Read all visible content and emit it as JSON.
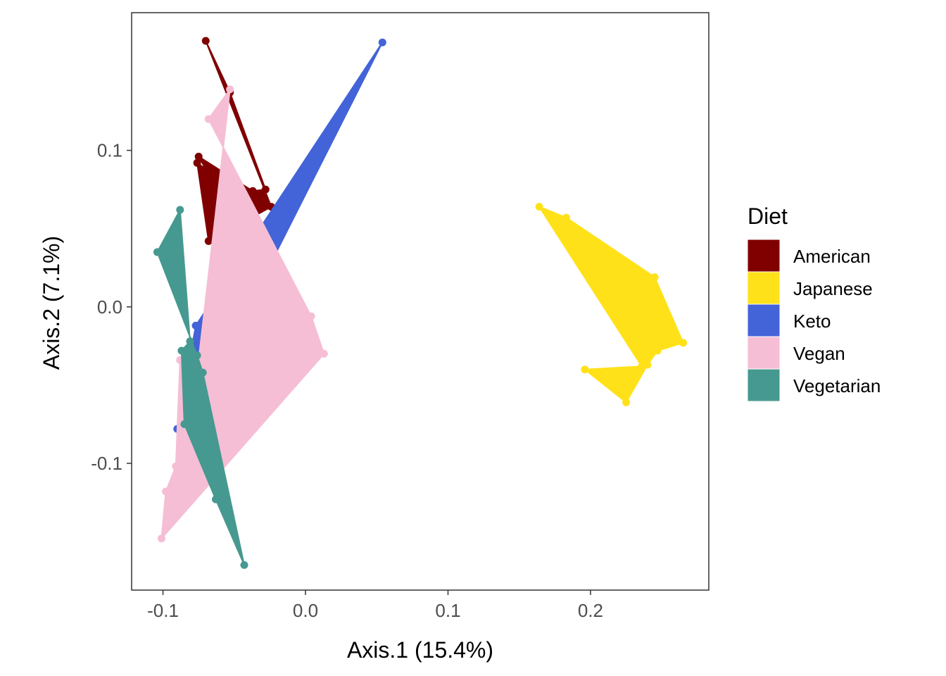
{
  "chart_data": {
    "type": "scatter",
    "xlabel": "Axis.1 (15.4%)",
    "ylabel": "Axis.2 (7.1%)",
    "xlim": [
      -0.122,
      0.283
    ],
    "ylim": [
      -0.181,
      0.188
    ],
    "x_ticks": [
      -0.1,
      0.0,
      0.1,
      0.2
    ],
    "x_tick_labels": [
      "-0.1",
      "0.0",
      "0.1",
      "0.2"
    ],
    "y_ticks": [
      -0.1,
      0.0,
      0.1
    ],
    "y_tick_labels": [
      "-0.1",
      "0.0",
      "0.1"
    ],
    "grid": false,
    "legend": {
      "title": "Diet",
      "position": "right"
    },
    "series": [
      {
        "name": "American",
        "color": "#800000",
        "points": [
          [
            -0.07,
            0.17
          ],
          [
            -0.053,
            0.137
          ],
          [
            -0.028,
            0.075
          ],
          [
            -0.037,
            0.074
          ],
          [
            -0.075,
            0.096
          ],
          [
            -0.063,
            0.077
          ],
          [
            -0.04,
            0.069
          ],
          [
            -0.076,
            0.092
          ],
          [
            -0.068,
            0.042
          ],
          [
            -0.024,
            0.064
          ]
        ]
      },
      {
        "name": "Japanese",
        "color": "#FFE119",
        "points": [
          [
            0.164,
            0.064
          ],
          [
            0.183,
            0.057
          ],
          [
            0.245,
            0.019
          ],
          [
            0.265,
            -0.023
          ],
          [
            0.247,
            -0.028
          ],
          [
            0.24,
            -0.037
          ],
          [
            0.225,
            -0.061
          ],
          [
            0.196,
            -0.04
          ],
          [
            0.236,
            -0.038
          ]
        ]
      },
      {
        "name": "Keto",
        "color": "#4363D8",
        "points": [
          [
            0.054,
            0.169
          ],
          [
            -0.026,
            0.025
          ],
          [
            -0.031,
            -0.022
          ],
          [
            -0.005,
            -0.032
          ],
          [
            -0.046,
            -0.059
          ],
          [
            -0.046,
            -0.079
          ],
          [
            -0.09,
            -0.078
          ],
          [
            -0.077,
            -0.012
          ]
        ]
      },
      {
        "name": "Vegan",
        "color": "#F5BED4",
        "points": [
          [
            -0.053,
            0.139
          ],
          [
            -0.068,
            0.12
          ],
          [
            0.004,
            -0.006
          ],
          [
            0.013,
            -0.03
          ],
          [
            -0.101,
            -0.148
          ],
          [
            -0.098,
            -0.118
          ],
          [
            -0.091,
            -0.102
          ],
          [
            -0.088,
            -0.034
          ],
          [
            -0.081,
            -0.029
          ],
          [
            -0.075,
            -0.034
          ]
        ]
      },
      {
        "name": "Vegetarian",
        "color": "#469990",
        "points": [
          [
            -0.104,
            0.035
          ],
          [
            -0.088,
            0.062
          ],
          [
            -0.081,
            -0.022
          ],
          [
            -0.087,
            -0.028
          ],
          [
            -0.085,
            -0.075
          ],
          [
            -0.063,
            -0.123
          ],
          [
            -0.043,
            -0.165
          ],
          [
            -0.072,
            -0.042
          ],
          [
            -0.076,
            -0.031
          ]
        ]
      }
    ]
  }
}
